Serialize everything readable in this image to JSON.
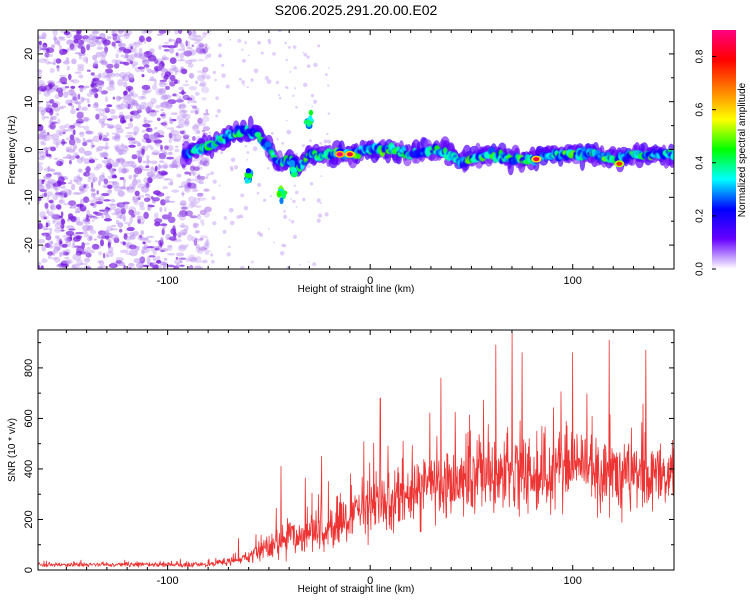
{
  "figure": {
    "title": "S206.2025.291.20.00.E02",
    "seed": 20251018
  },
  "chart_data": [
    {
      "type": "heatmap",
      "title": "S206.2025.291.20.00.E02",
      "xlabel": "Height of straight line (km)",
      "ylabel": "Frequency (Hz)",
      "xlim": [
        -164,
        150
      ],
      "ylim": [
        -25,
        25
      ],
      "xticks": [
        -100,
        0,
        100
      ],
      "yticks": [
        -20,
        -10,
        0,
        10,
        20
      ],
      "xtick_labels": [
        "-100",
        "0",
        "100"
      ],
      "ytick_labels": [
        "-20",
        "-10",
        "0",
        "10",
        "20"
      ],
      "noise_region": {
        "x_range": [
          -164,
          -80
        ],
        "y_range": [
          -25,
          25
        ],
        "amplitude_range": [
          0.05,
          0.3
        ]
      },
      "signal_track": [
        {
          "x": -92,
          "y": -1
        },
        {
          "x": -85,
          "y": 0
        },
        {
          "x": -78,
          "y": 1
        },
        {
          "x": -70,
          "y": 3
        },
        {
          "x": -62,
          "y": 4
        },
        {
          "x": -55,
          "y": 3
        },
        {
          "x": -50,
          "y": 0
        },
        {
          "x": -45,
          "y": -3
        },
        {
          "x": -40,
          "y": -2
        },
        {
          "x": -35,
          "y": -4
        },
        {
          "x": -30,
          "y": -1
        },
        {
          "x": -20,
          "y": -1
        },
        {
          "x": -10,
          "y": -1
        },
        {
          "x": 0,
          "y": 0
        },
        {
          "x": 10,
          "y": 0
        },
        {
          "x": 20,
          "y": -1
        },
        {
          "x": 30,
          "y": 0
        },
        {
          "x": 40,
          "y": -1
        },
        {
          "x": 45,
          "y": -3
        },
        {
          "x": 50,
          "y": -2
        },
        {
          "x": 60,
          "y": -1
        },
        {
          "x": 70,
          "y": -2
        },
        {
          "x": 80,
          "y": -2
        },
        {
          "x": 90,
          "y": -1
        },
        {
          "x": 100,
          "y": -1
        },
        {
          "x": 110,
          "y": -1
        },
        {
          "x": 120,
          "y": -2
        },
        {
          "x": 130,
          "y": -1
        },
        {
          "x": 140,
          "y": -1
        },
        {
          "x": 150,
          "y": -1
        }
      ],
      "side_features": [
        {
          "x": -60,
          "y": -6,
          "amplitude": 0.5
        },
        {
          "x": -44,
          "y": -9,
          "amplitude": 0.55
        },
        {
          "x": -30,
          "y": 6,
          "amplitude": 0.5
        },
        {
          "x": -38,
          "y": -4,
          "amplitude": 0.45
        }
      ],
      "peaks": [
        {
          "x": -15,
          "y": -1,
          "amplitude": 0.9
        },
        {
          "x": -10,
          "y": -1,
          "amplitude": 0.85
        },
        {
          "x": 82,
          "y": -2,
          "amplitude": 0.85
        },
        {
          "x": 123,
          "y": -3,
          "amplitude": 0.75
        }
      ],
      "colorbar": {
        "label": "Normalized spectral amplitude",
        "range": [
          0,
          0.9
        ],
        "ticks": [
          0.0,
          0.2,
          0.4,
          0.6,
          0.8
        ],
        "tick_labels": [
          "0.0",
          "0.2",
          "0.4",
          "0.6",
          "0.8"
        ],
        "colors": [
          "#ffffff",
          "#6600ff",
          "#0000ff",
          "#00ffff",
          "#00ff00",
          "#ffff00",
          "#ff8000",
          "#ff0000",
          "#ff0080"
        ]
      }
    },
    {
      "type": "line",
      "xlabel": "Height of straight line (km)",
      "ylabel": "SNR (10 * v/v)",
      "xlim": [
        -164,
        150
      ],
      "ylim": [
        0,
        950
      ],
      "xticks": [
        -100,
        0,
        100
      ],
      "yticks": [
        0,
        200,
        400,
        600,
        800
      ],
      "xtick_labels": [
        "-100",
        "0",
        "100"
      ],
      "ytick_labels": [
        "0",
        "200",
        "400",
        "600",
        "800"
      ],
      "color": "#ee3333",
      "samples": 1600,
      "envelope": [
        {
          "x": -164,
          "base": 20,
          "spread": 12
        },
        {
          "x": -80,
          "base": 22,
          "spread": 14
        },
        {
          "x": -65,
          "base": 40,
          "spread": 25
        },
        {
          "x": -50,
          "base": 90,
          "spread": 80
        },
        {
          "x": -40,
          "base": 130,
          "spread": 110
        },
        {
          "x": -20,
          "base": 160,
          "spread": 130
        },
        {
          "x": 0,
          "base": 250,
          "spread": 180
        },
        {
          "x": 20,
          "base": 300,
          "spread": 200
        },
        {
          "x": 40,
          "base": 340,
          "spread": 220
        },
        {
          "x": 60,
          "base": 390,
          "spread": 240
        },
        {
          "x": 80,
          "base": 370,
          "spread": 230
        },
        {
          "x": 100,
          "base": 390,
          "spread": 230
        },
        {
          "x": 120,
          "base": 380,
          "spread": 230
        },
        {
          "x": 150,
          "base": 370,
          "spread": 220
        }
      ],
      "peaks": [
        {
          "x": -65,
          "y": 125
        },
        {
          "x": -44,
          "y": 410
        },
        {
          "x": -24,
          "y": 450
        },
        {
          "x": 5,
          "y": 680
        },
        {
          "x": 35,
          "y": 760
        },
        {
          "x": 62,
          "y": 890
        },
        {
          "x": 70,
          "y": 940
        },
        {
          "x": 75,
          "y": 860
        },
        {
          "x": 100,
          "y": 860
        },
        {
          "x": 118,
          "y": 910
        },
        {
          "x": 136,
          "y": 870
        }
      ]
    }
  ]
}
